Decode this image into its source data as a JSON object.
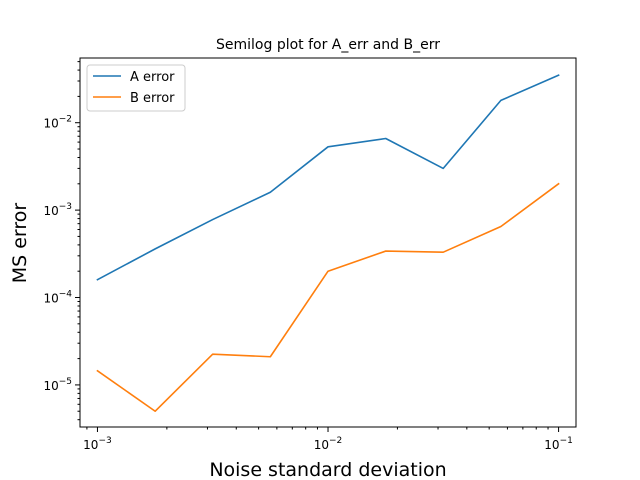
{
  "chart_data": {
    "type": "line",
    "title": "Semilog plot for A_err and B_err",
    "xlabel": "Noise standard deviation",
    "ylabel": "MS error",
    "xscale": "log",
    "yscale": "log",
    "xlim": [
      0.00084,
      0.119
    ],
    "ylim": [
      3.3e-06,
      0.055
    ],
    "grid": false,
    "legend_position": "upper-left",
    "x": [
      0.001,
      0.00178,
      0.00316,
      0.00562,
      0.01,
      0.0178,
      0.0316,
      0.0562,
      0.1
    ],
    "series": [
      {
        "name": "A error",
        "color": "#1f77b4",
        "values": [
          0.00016,
          0.00036,
          0.00078,
          0.0016,
          0.0053,
          0.0066,
          0.003,
          0.018,
          0.035
        ]
      },
      {
        "name": "B error",
        "color": "#ff7f0e",
        "values": [
          1.45e-05,
          5e-06,
          2.25e-05,
          2.1e-05,
          0.0002,
          0.00034,
          0.00033,
          0.00065,
          0.002
        ]
      }
    ],
    "x_ticks": [
      {
        "value": 0.001,
        "base": "10",
        "exp": "−3"
      },
      {
        "value": 0.01,
        "base": "10",
        "exp": "−2"
      },
      {
        "value": 0.1,
        "base": "10",
        "exp": "−1"
      }
    ],
    "y_ticks": [
      {
        "value": 1e-05,
        "base": "10",
        "exp": "−5"
      },
      {
        "value": 0.0001,
        "base": "10",
        "exp": "−4"
      },
      {
        "value": 0.001,
        "base": "10",
        "exp": "−3"
      },
      {
        "value": 0.01,
        "base": "10",
        "exp": "−2"
      }
    ]
  }
}
